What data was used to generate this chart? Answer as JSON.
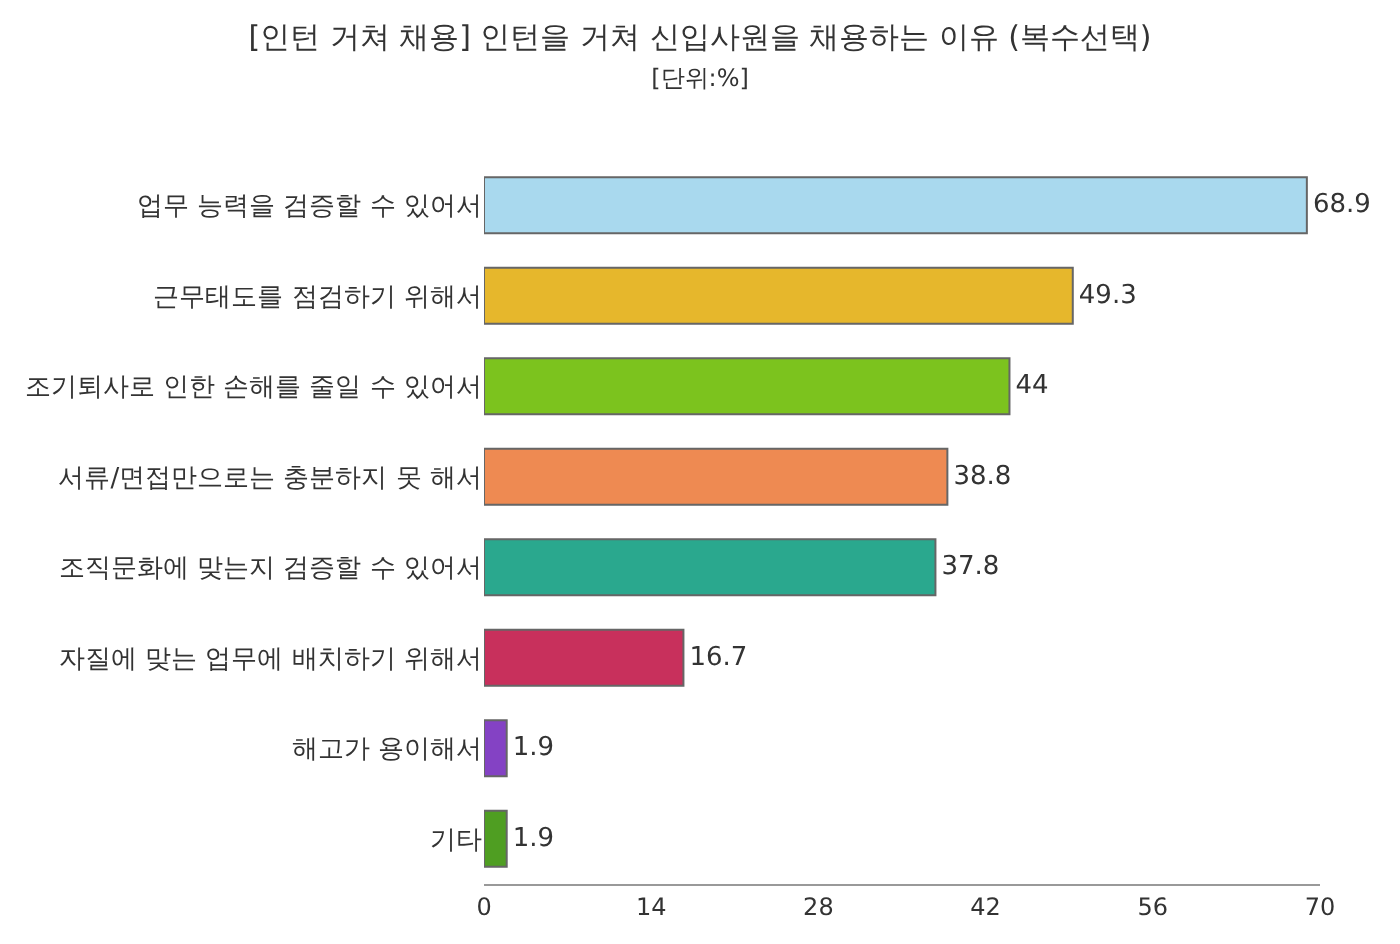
{
  "chart_data": {
    "type": "bar",
    "orientation": "horizontal",
    "title": "[인턴 거쳐 채용] 인턴을 거쳐 신입사원을 채용하는 이유 (복수선택)",
    "subtitle": "[단위:%]",
    "categories": [
      "업무 능력을 검증할 수 있어서",
      "근무태도를 점검하기 위해서",
      "조기퇴사로 인한 손해를 줄일 수 있어서",
      "서류/면접만으로는 충분하지 못 해서",
      "조직문화에 맞는지 검증할 수 있어서",
      "자질에 맞는 업무에 배치하기 위해서",
      "해고가 용이해서",
      "기타"
    ],
    "values": [
      68.9,
      49.3,
      44,
      38.8,
      37.8,
      16.7,
      1.9,
      1.9
    ],
    "colors": [
      "#a9d9ee",
      "#e6b72c",
      "#7cc31e",
      "#ee8a52",
      "#2aa88e",
      "#c8305c",
      "#8442c4",
      "#4f9e22"
    ],
    "xlim": [
      0,
      70
    ],
    "xticks": [
      0,
      14,
      28,
      42,
      56,
      70
    ],
    "data_labels": true
  }
}
